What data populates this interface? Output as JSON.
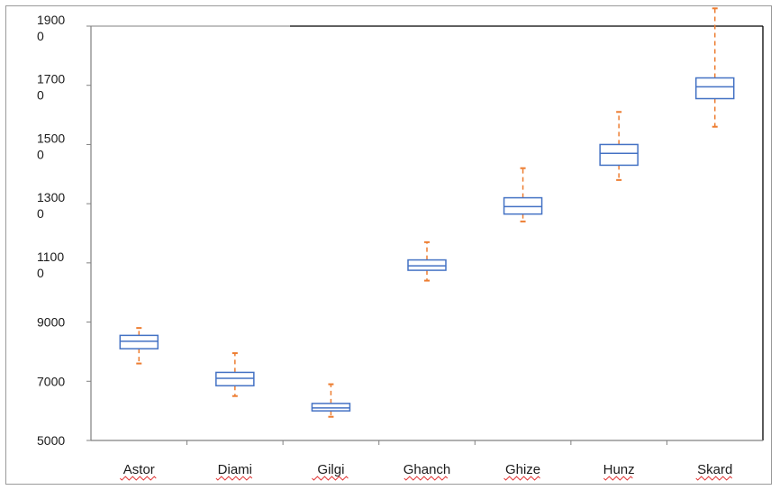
{
  "chart_data": {
    "type": "boxplot",
    "title": "",
    "xlabel": "",
    "ylabel": "",
    "ylim": [
      5000,
      19000
    ],
    "y_tick_labels": [
      [
        "1900",
        "0"
      ],
      [
        "1700",
        "0"
      ],
      [
        "1500",
        "0"
      ],
      [
        "1300",
        "0"
      ],
      [
        "1100",
        "0"
      ],
      [
        "9000"
      ],
      [
        "7000"
      ],
      [
        "5000"
      ]
    ],
    "y_tick_values": [
      19000,
      17000,
      15000,
      13000,
      11000,
      9000,
      7000,
      5000
    ],
    "grid": false,
    "categories": [
      "Astor",
      "Diami",
      "Gilgi",
      "Ghanch",
      "Ghize",
      "Hunz",
      "Skard"
    ],
    "boxes": [
      {
        "category": "Astor",
        "whisker_low": 7600,
        "q1": 8100,
        "median": 8350,
        "q3": 8550,
        "whisker_high": 8800
      },
      {
        "category": "Diami",
        "whisker_low": 6500,
        "q1": 6850,
        "median": 7100,
        "q3": 7300,
        "whisker_high": 7950
      },
      {
        "category": "Gilgi",
        "whisker_low": 5800,
        "q1": 6000,
        "median": 6100,
        "q3": 6250,
        "whisker_high": 6900
      },
      {
        "category": "Ghanch",
        "whisker_low": 10400,
        "q1": 10750,
        "median": 10900,
        "q3": 11100,
        "whisker_high": 11700
      },
      {
        "category": "Ghize",
        "whisker_low": 12400,
        "q1": 12650,
        "median": 12900,
        "q3": 13200,
        "whisker_high": 14200
      },
      {
        "category": "Hunz",
        "whisker_low": 13800,
        "q1": 14300,
        "median": 14700,
        "q3": 15000,
        "whisker_high": 16100
      },
      {
        "category": "Skard",
        "whisker_low": 15600,
        "q1": 16550,
        "median": 16950,
        "q3": 17250,
        "whisker_high": 19600
      }
    ],
    "colors": {
      "box": "#4472c4",
      "whisker": "#ed7d31",
      "axis": "#808080",
      "plot_border": "#000000"
    }
  }
}
